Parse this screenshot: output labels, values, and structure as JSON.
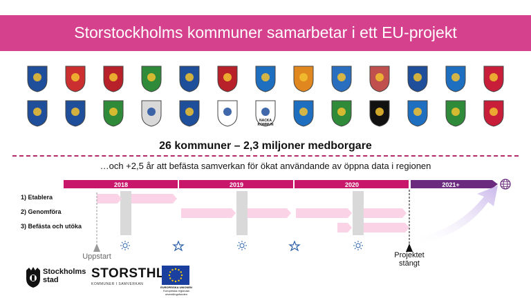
{
  "banner": {
    "title": "Storstockholms kommuner samarbetar i ett EU-projekt"
  },
  "headline": "26 kommuner – 2,3 miljoner medborgare",
  "subline": "…och +2,5 år att befästa samverkan för ökat användande av öppna data i regionen",
  "timeline": {
    "years": [
      "2018",
      "2019",
      "2020",
      "2021+"
    ],
    "phases": [
      "1) Etablera",
      "2) Genomföra",
      "3) Befästa och utöka"
    ],
    "start_label": "Uppstart",
    "end_label_line1": "Projektet",
    "end_label_line2": "stängt"
  },
  "crests": {
    "row1_colors": [
      "#1f4e9b",
      "#cc2f2f",
      "#b8202a",
      "#2f8a3a",
      "#1f4e9b",
      "#b8202a",
      "#1f6fc0",
      "#e0871f",
      "#2a6fbf",
      "#c0504d",
      "#1f4e9b",
      "#1f6fc0",
      "#c81e3a"
    ],
    "row2_colors": [
      "#1f4e9b",
      "#1f4e9b",
      "#2f8a3a",
      "#d9d9d9",
      "#1f4e9b",
      "#ffffff",
      "#ffffff",
      "#1f6fc0",
      "#2f8a3a",
      "#111111",
      "#1f6fc0",
      "#2f8a3a",
      "#c81e3a"
    ],
    "nacka_text_1": "NACKA",
    "nacka_text_2": "KOMMUN"
  },
  "logos": {
    "stockholm_line1": "Stockholms",
    "stockholm_line2": "stad",
    "storsthlm": "STORSTHLM",
    "storsthlm_sub": "KOMMUNER I SAMVERKAN",
    "eu_line1": "EUROPEISKA UNIONEN",
    "eu_line2": "Europeiska regionala",
    "eu_line3": "utvecklingsfonden"
  }
}
